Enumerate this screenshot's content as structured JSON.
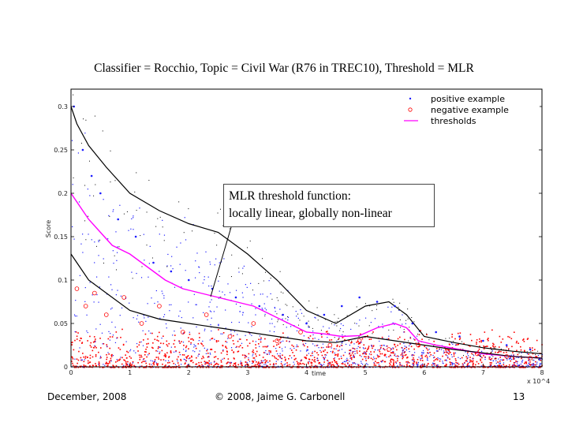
{
  "slide": {
    "footer_date": "December, 2008",
    "footer_copyright": "© 2008, Jaime G. Carbonell",
    "footer_page": "13"
  },
  "chart_data": {
    "type": "scatter",
    "title": "Classifier = Rocchio,  Topic = Civil War (R76 in TREC10), Threshold = MLR",
    "xlabel": "time",
    "ylabel": "Score",
    "x_scale_note": "x 10^4",
    "xlim": [
      0,
      8
    ],
    "ylim": [
      0,
      0.32
    ],
    "x_ticks": [
      "0",
      "1",
      "2",
      "3",
      "4",
      "5",
      "6",
      "7",
      "8"
    ],
    "y_ticks": [
      "0",
      "0.05",
      "0.1",
      "0.15",
      "0.2",
      "0.25",
      "0.3"
    ],
    "legend": {
      "position": "top-right",
      "entries": [
        "positive example",
        "negative example",
        "thresholds"
      ]
    },
    "annotation": {
      "line1": "MLR threshold function:",
      "line2": "locally linear, globally non-linear"
    },
    "colors": {
      "positive": "#1a1aff",
      "negative": "#ff0000",
      "threshold": "#ff00ff",
      "envelope": "#000000"
    },
    "series": [
      {
        "name": "thresholds",
        "style": "magenta line",
        "x": [
          0,
          0.05,
          0.15,
          0.3,
          0.5,
          0.7,
          1.0,
          1.3,
          1.6,
          1.9,
          2.2,
          2.5,
          2.8,
          3.1,
          3.4,
          3.7,
          4.0,
          4.3,
          4.6,
          4.9,
          5.2,
          5.5,
          5.7,
          5.9,
          6.2,
          6.6,
          7.0,
          7.5,
          8.0
        ],
        "y": [
          0.2,
          0.195,
          0.185,
          0.17,
          0.155,
          0.14,
          0.13,
          0.115,
          0.1,
          0.09,
          0.085,
          0.08,
          0.075,
          0.07,
          0.06,
          0.05,
          0.04,
          0.038,
          0.035,
          0.036,
          0.045,
          0.05,
          0.045,
          0.03,
          0.025,
          0.02,
          0.015,
          0.012,
          0.01
        ]
      },
      {
        "name": "upper envelope",
        "style": "black line",
        "x": [
          0,
          0.1,
          0.3,
          0.6,
          1.0,
          1.5,
          2.0,
          2.5,
          3.0,
          3.5,
          4.0,
          4.5,
          5.0,
          5.4,
          5.7,
          6.0,
          6.5,
          7.0,
          7.5,
          8.0
        ],
        "y": [
          0.3,
          0.28,
          0.255,
          0.23,
          0.2,
          0.18,
          0.165,
          0.155,
          0.13,
          0.1,
          0.065,
          0.05,
          0.07,
          0.075,
          0.06,
          0.035,
          0.028,
          0.022,
          0.018,
          0.015
        ]
      },
      {
        "name": "lower envelope",
        "style": "black line",
        "x": [
          0,
          0.1,
          0.3,
          0.6,
          1.0,
          1.5,
          2.0,
          2.5,
          3.0,
          3.5,
          4.0,
          4.5,
          5.0,
          5.5,
          6.0,
          6.5,
          7.0,
          7.5,
          8.0
        ],
        "y": [
          0.13,
          0.12,
          0.1,
          0.085,
          0.065,
          0.055,
          0.05,
          0.045,
          0.04,
          0.035,
          0.03,
          0.028,
          0.035,
          0.03,
          0.025,
          0.02,
          0.016,
          0.012,
          0.01
        ]
      },
      {
        "name": "negative example",
        "style": "red circles",
        "x": [
          0.1,
          0.25,
          0.4,
          0.6,
          0.9,
          1.2,
          1.5,
          1.9,
          2.3,
          2.7,
          3.1,
          3.5,
          3.9,
          4.4,
          4.9,
          5.4,
          5.9,
          6.4,
          6.9,
          7.4,
          7.8
        ],
        "y": [
          0.09,
          0.07,
          0.085,
          0.06,
          0.08,
          0.05,
          0.07,
          0.04,
          0.06,
          0.035,
          0.05,
          0.03,
          0.04,
          0.025,
          0.03,
          0.02,
          0.025,
          0.018,
          0.015,
          0.012,
          0.01
        ]
      },
      {
        "name": "positive example",
        "style": "blue dots",
        "x": [
          0.05,
          0.2,
          0.35,
          0.5,
          0.8,
          1.1,
          1.4,
          1.7,
          2.0,
          2.4,
          2.8,
          3.2,
          3.6,
          4.0,
          4.3,
          4.6,
          4.9,
          5.2,
          5.5,
          5.8,
          6.2,
          6.6,
          7.0,
          7.4,
          7.8
        ],
        "y": [
          0.3,
          0.25,
          0.22,
          0.2,
          0.17,
          0.15,
          0.12,
          0.11,
          0.1,
          0.09,
          0.08,
          0.07,
          0.06,
          0.05,
          0.06,
          0.07,
          0.08,
          0.075,
          0.07,
          0.05,
          0.04,
          0.035,
          0.03,
          0.025,
          0.02
        ]
      }
    ]
  }
}
